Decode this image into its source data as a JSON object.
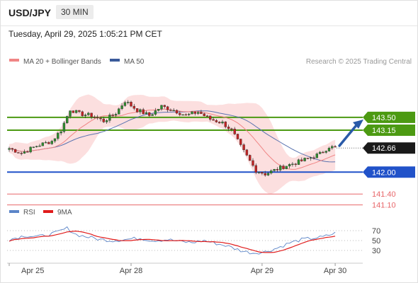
{
  "header": {
    "symbol": "USD/JPY",
    "timeframe": "30 MIN",
    "datetime": "Tuesday, April 29, 2025 1:05:21 PM CET"
  },
  "legend": {
    "ma20_bb": "MA 20 + Bollinger Bands",
    "ma50": "MA 50",
    "credit": "Research © 2025 Trading Central",
    "rsi": "RSI",
    "rsi_ma": "9MA"
  },
  "colors": {
    "green_level": "#4c9a12",
    "blue_level": "#2152c9",
    "red_level": "#e8676a",
    "current_price": "#1a1a1a",
    "bollinger_fill": "#fbd9d9",
    "ma20": "#f08585",
    "ma50": "#5a73b0",
    "candle_up": "#2e8c2e",
    "candle_down": "#c22222",
    "rsi": "#5b85c8",
    "rsi_ma": "#e01b1b",
    "arrow": "#2a5aa8"
  },
  "chart_data": {
    "type": "candlestick",
    "x_tick_labels": [
      "Apr 25",
      "Apr 28",
      "Apr 29",
      "Apr 30"
    ],
    "price_range": [
      140.9,
      144.7
    ],
    "levels": [
      {
        "value": 143.5,
        "label": "143.50",
        "kind": "resistance",
        "color": "green"
      },
      {
        "value": 143.15,
        "label": "143.15",
        "kind": "resistance",
        "color": "green"
      },
      {
        "value": 142.66,
        "label": "142.66",
        "kind": "current",
        "color": "black"
      },
      {
        "value": 142.0,
        "label": "142.00",
        "kind": "pivot",
        "color": "blue"
      },
      {
        "value": 141.4,
        "label": "141.40",
        "kind": "support",
        "color": "red"
      },
      {
        "value": 141.1,
        "label": "141.10",
        "kind": "support",
        "color": "red"
      }
    ],
    "close_anchors": [
      [
        0,
        142.65
      ],
      [
        4,
        142.52
      ],
      [
        9,
        142.72
      ],
      [
        14,
        142.85
      ],
      [
        17,
        143.15
      ],
      [
        20,
        143.72
      ],
      [
        23,
        143.6
      ],
      [
        27,
        143.55
      ],
      [
        31,
        143.4
      ],
      [
        35,
        143.62
      ],
      [
        38,
        143.95
      ],
      [
        42,
        143.7
      ],
      [
        46,
        143.55
      ],
      [
        50,
        143.8
      ],
      [
        54,
        143.7
      ],
      [
        58,
        143.55
      ],
      [
        62,
        143.65
      ],
      [
        66,
        143.45
      ],
      [
        70,
        143.35
      ],
      [
        73,
        143.15
      ],
      [
        76,
        142.7
      ],
      [
        79,
        142.3
      ],
      [
        81,
        142.05
      ],
      [
        84,
        141.95
      ],
      [
        87,
        142.05
      ],
      [
        91,
        142.18
      ],
      [
        95,
        142.28
      ],
      [
        99,
        142.4
      ],
      [
        102,
        142.5
      ],
      [
        105,
        142.7
      ],
      [
        107,
        142.66
      ]
    ],
    "candle_count": 108,
    "rsi": {
      "range": [
        10,
        90
      ],
      "tick_labels": [
        "70",
        "50",
        "30"
      ],
      "tick_values": [
        70,
        50,
        30
      ],
      "anchors": [
        [
          0,
          52
        ],
        [
          5,
          60
        ],
        [
          10,
          58
        ],
        [
          15,
          65
        ],
        [
          19,
          75
        ],
        [
          22,
          62
        ],
        [
          26,
          57
        ],
        [
          30,
          52
        ],
        [
          34,
          50
        ],
        [
          38,
          52
        ],
        [
          43,
          55
        ],
        [
          47,
          50
        ],
        [
          52,
          52
        ],
        [
          56,
          48
        ],
        [
          60,
          46
        ],
        [
          64,
          50
        ],
        [
          68,
          44
        ],
        [
          71,
          40
        ],
        [
          74,
          34
        ],
        [
          77,
          28
        ],
        [
          80,
          25
        ],
        [
          84,
          27
        ],
        [
          88,
          35
        ],
        [
          92,
          45
        ],
        [
          96,
          52
        ],
        [
          100,
          55
        ],
        [
          103,
          57
        ],
        [
          107,
          65
        ]
      ]
    }
  }
}
